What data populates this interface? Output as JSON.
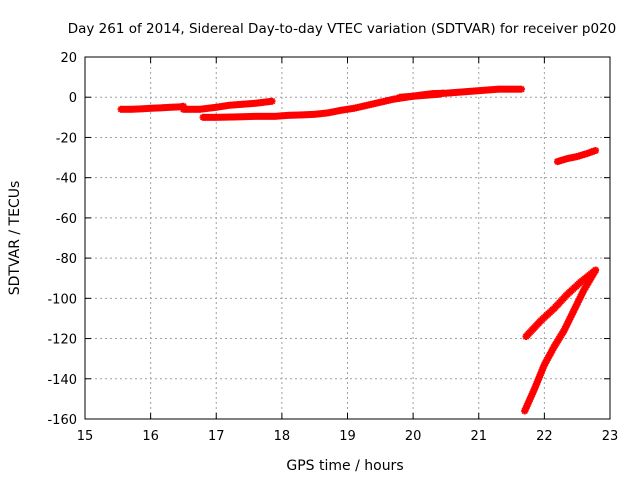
{
  "chart_data": {
    "type": "scatter",
    "title": "Day 261 of 2014, Sidereal Day-to-day VTEC variation (SDTVAR) for receiver p020",
    "xlabel": "GPS time / hours",
    "ylabel": "SDTVAR / TECUs",
    "xlim": [
      15,
      23
    ],
    "ylim": [
      -160,
      20
    ],
    "xticks": [
      15,
      16,
      17,
      18,
      19,
      20,
      21,
      22,
      23
    ],
    "yticks": [
      20,
      0,
      -20,
      -40,
      -60,
      -80,
      -100,
      -120,
      -140,
      -160
    ],
    "grid": true,
    "legend": "none",
    "marker_color": "#ff0000",
    "series": [
      {
        "points": [
          [
            15.55,
            -6
          ],
          [
            15.7,
            -6
          ],
          [
            15.85,
            -5.8
          ],
          [
            16.0,
            -5.5
          ],
          [
            16.15,
            -5.3
          ],
          [
            16.3,
            -5
          ],
          [
            16.45,
            -4.8
          ],
          [
            16.5,
            -4.5
          ]
        ]
      },
      {
        "points": [
          [
            16.5,
            -6
          ],
          [
            16.75,
            -6
          ],
          [
            17.0,
            -5
          ],
          [
            17.2,
            -4
          ],
          [
            17.4,
            -3.5
          ],
          [
            17.6,
            -3
          ],
          [
            17.85,
            -2
          ]
        ]
      },
      {
        "points": [
          [
            16.8,
            -10
          ],
          [
            17.0,
            -10
          ],
          [
            17.3,
            -9.8
          ],
          [
            17.6,
            -9.5
          ],
          [
            17.9,
            -9.5
          ],
          [
            18.1,
            -9
          ],
          [
            18.3,
            -8.8
          ],
          [
            18.5,
            -8.5
          ],
          [
            18.7,
            -7.8
          ],
          [
            18.9,
            -6.5
          ],
          [
            19.1,
            -5.5
          ],
          [
            19.3,
            -4
          ],
          [
            19.5,
            -2.5
          ],
          [
            19.7,
            -1
          ],
          [
            19.9,
            0
          ],
          [
            20.1,
            1
          ],
          [
            20.3,
            1.8
          ],
          [
            20.5,
            2
          ],
          [
            20.7,
            2.5
          ],
          [
            20.9,
            3
          ],
          [
            21.1,
            3.5
          ],
          [
            21.3,
            4
          ],
          [
            21.5,
            4
          ],
          [
            21.65,
            4
          ]
        ]
      },
      {
        "points": [
          [
            19.8,
            0
          ],
          [
            20.0,
            0.5
          ],
          [
            20.2,
            1
          ],
          [
            20.4,
            1.5
          ],
          [
            20.45,
            2
          ]
        ]
      },
      {
        "points": [
          [
            22.2,
            -32
          ],
          [
            22.35,
            -30.5
          ],
          [
            22.5,
            -29.5
          ],
          [
            22.65,
            -28
          ],
          [
            22.78,
            -26.5
          ]
        ]
      },
      {
        "points": [
          [
            21.72,
            -119
          ],
          [
            21.95,
            -111
          ],
          [
            22.15,
            -105
          ],
          [
            22.35,
            -98
          ],
          [
            22.55,
            -92
          ],
          [
            22.78,
            -86
          ]
        ]
      },
      {
        "points": [
          [
            21.7,
            -156
          ],
          [
            21.85,
            -145
          ],
          [
            22.0,
            -133
          ],
          [
            22.15,
            -124
          ],
          [
            22.3,
            -116
          ],
          [
            22.45,
            -106
          ],
          [
            22.6,
            -96
          ],
          [
            22.78,
            -86
          ]
        ]
      }
    ]
  }
}
